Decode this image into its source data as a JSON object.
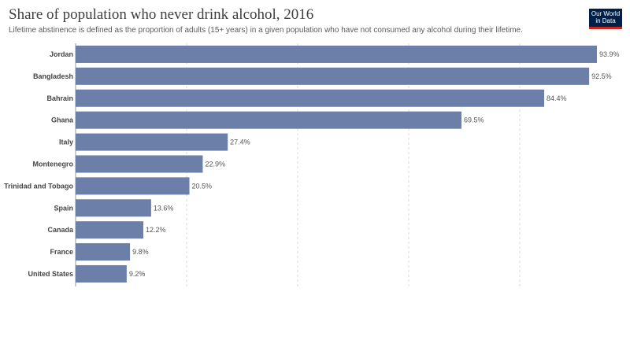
{
  "header": {
    "title": "Share of population who never drink alcohol, 2016",
    "subtitle": "Lifetime abstinence is defined as the proportion of adults (15+ years) in a given population who have not consumed any alcohol during their lifetime.",
    "logo_line1": "Our World",
    "logo_line2": "in Data"
  },
  "colors": {
    "bar": "#6b7fa8",
    "logo_bg": "#002147",
    "logo_accent": "#ce261e"
  },
  "chart_data": {
    "type": "bar",
    "orientation": "horizontal",
    "categories": [
      "Jordan",
      "Bangladesh",
      "Bahrain",
      "Ghana",
      "Italy",
      "Montenegro",
      "Trinidad and Tobago",
      "Spain",
      "Canada",
      "France",
      "United States"
    ],
    "values": [
      93.9,
      92.5,
      84.4,
      69.5,
      27.4,
      22.9,
      20.5,
      13.6,
      12.2,
      9.8,
      9.2
    ],
    "value_labels": [
      "93.9%",
      "92.5%",
      "84.4%",
      "69.5%",
      "27.4%",
      "22.9%",
      "20.5%",
      "13.6%",
      "12.2%",
      "9.8%",
      "9.2%"
    ],
    "unit": "%",
    "xlim": [
      0,
      93.9
    ],
    "grid": true,
    "gridlines_at": [
      0,
      20,
      40,
      60,
      80
    ]
  }
}
